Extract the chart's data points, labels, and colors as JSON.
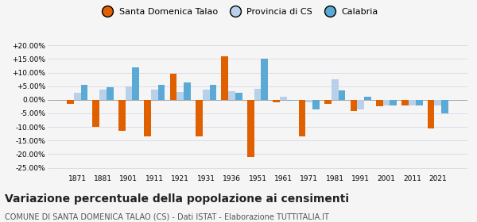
{
  "years": [
    1871,
    1881,
    1901,
    1911,
    1921,
    1931,
    1936,
    1951,
    1961,
    1971,
    1981,
    1991,
    2001,
    2011,
    2021
  ],
  "santa": [
    -1.5,
    -10.0,
    -11.5,
    -13.5,
    9.5,
    -13.5,
    16.0,
    -21.0,
    -1.0,
    -13.5,
    -1.5,
    -4.0,
    -2.5,
    -2.0,
    -10.5
  ],
  "provincia": [
    2.5,
    3.8,
    5.0,
    3.8,
    3.0,
    3.8,
    3.2,
    4.0,
    1.0,
    -1.0,
    7.5,
    -3.5,
    -2.0,
    -2.0,
    -2.0
  ],
  "calabria": [
    5.5,
    4.5,
    12.0,
    5.5,
    6.5,
    5.5,
    2.7,
    15.0,
    -0.2,
    -3.5,
    3.5,
    1.0,
    -2.0,
    -2.0,
    -5.0
  ],
  "santa_color": "#e06000",
  "provincia_color": "#b8d0ea",
  "calabria_color": "#5baad5",
  "title": "Variazione percentuale della popolazione ai censimenti",
  "subtitle": "COMUNE DI SANTA DOMENICA TALAO (CS) - Dati ISTAT - Elaborazione TUTTITALIA.IT",
  "legend_labels": [
    "Santa Domenica Talao",
    "Provincia di CS",
    "Calabria"
  ],
  "ylim": [
    -27,
    22
  ],
  "yticks": [
    -25,
    -20,
    -15,
    -10,
    -5,
    0,
    5,
    10,
    15,
    20
  ],
  "ytick_labels": [
    "-25.00%",
    "-20.00%",
    "-15.00%",
    "-10.00%",
    "-5.00%",
    "0.00%",
    "+5.00%",
    "+10.00%",
    "+15.00%",
    "+20.00%"
  ],
  "background_color": "#f5f5f5",
  "bar_width": 0.27,
  "grid_color": "#d8d8e8",
  "title_fontsize": 10,
  "subtitle_fontsize": 7,
  "tick_fontsize": 6.5
}
